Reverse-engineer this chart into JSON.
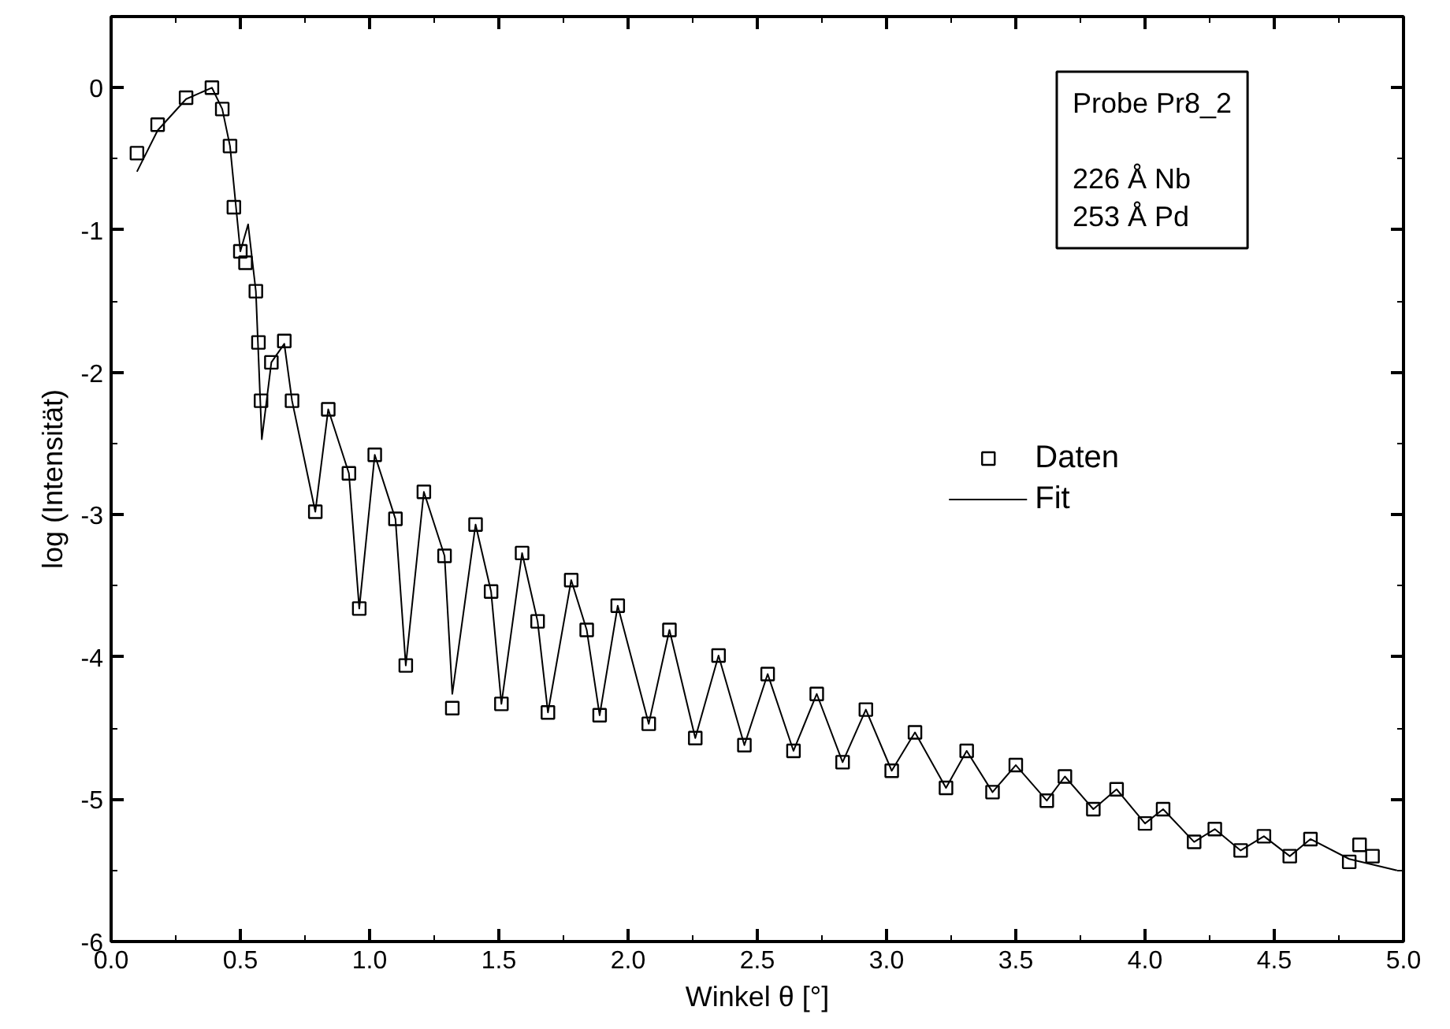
{
  "chart_data": {
    "type": "scatter",
    "xlabel": "Winkel θ [°]",
    "ylabel": "log (Intensität)",
    "annotations": [
      "Probe Pr8_2\n\n226 Å Nb\n253 Å Pd"
    ],
    "xlim": [
      0,
      5
    ],
    "ylim": [
      -6,
      0.5
    ],
    "xticks": [
      {
        "value": 0,
        "label": "0.0"
      },
      {
        "value": 0.5,
        "label": "0.5"
      },
      {
        "value": 1,
        "label": "1.0"
      },
      {
        "value": 1.5,
        "label": "1.5"
      },
      {
        "value": 2,
        "label": "2.0"
      },
      {
        "value": 2.5,
        "label": "2.5"
      },
      {
        "value": 3,
        "label": "3.0"
      },
      {
        "value": 3.5,
        "label": "3.5"
      },
      {
        "value": 4,
        "label": "4.0"
      },
      {
        "value": 4.5,
        "label": "4.5"
      },
      {
        "value": 5,
        "label": "5.0"
      }
    ],
    "yticks": [
      -6,
      -5,
      -4,
      -3,
      -2,
      -1,
      0
    ],
    "grid": false,
    "legend": "right",
    "series": [
      {
        "name": "Daten",
        "marker": "square",
        "color": "#000000",
        "x": [
          0.1,
          0.18,
          0.29,
          0.39,
          0.43,
          0.46,
          0.475,
          0.5,
          0.52,
          0.56,
          0.57,
          0.58,
          0.62,
          0.67,
          0.7,
          0.79,
          0.84,
          0.92,
          0.96,
          1.02,
          1.1,
          1.14,
          1.21,
          1.29,
          1.32,
          1.41,
          1.47,
          1.51,
          1.59,
          1.65,
          1.69,
          1.78,
          1.84,
          1.89,
          1.96,
          2.08,
          2.16,
          2.26,
          2.35,
          2.45,
          2.54,
          2.64,
          2.73,
          2.83,
          2.92,
          3.02,
          3.11,
          3.23,
          3.31,
          3.41,
          3.5,
          3.62,
          3.69,
          3.8,
          3.89,
          4.0,
          4.07,
          4.19,
          4.27,
          4.37,
          4.46,
          4.56,
          4.64,
          4.79,
          4.83,
          4.88
        ],
        "values": [
          -0.46,
          -0.26,
          -0.07,
          0.0,
          -0.15,
          -0.41,
          -0.84,
          -1.15,
          -1.23,
          -1.43,
          -1.79,
          -2.2,
          -1.93,
          -1.78,
          -2.2,
          -2.98,
          -2.26,
          -2.71,
          -3.66,
          -2.58,
          -3.03,
          -4.06,
          -2.84,
          -3.29,
          -4.36,
          -3.07,
          -3.54,
          -4.33,
          -3.27,
          -3.75,
          -4.39,
          -3.46,
          -3.81,
          -4.41,
          -3.64,
          -4.47,
          -3.81,
          -4.57,
          -3.99,
          -4.62,
          -4.12,
          -4.66,
          -4.26,
          -4.74,
          -4.37,
          -4.8,
          -4.53,
          -4.92,
          -4.66,
          -4.95,
          -4.76,
          -5.01,
          -4.84,
          -5.07,
          -4.93,
          -5.17,
          -5.07,
          -5.3,
          -5.21,
          -5.36,
          -5.26,
          -5.4,
          -5.28,
          -5.44,
          -5.32,
          -5.4
        ]
      },
      {
        "name": "Fit",
        "type": "line",
        "line_style": "solid",
        "color": "#000000",
        "x": [
          0.1,
          0.18,
          0.29,
          0.39,
          0.43,
          0.46,
          0.5,
          0.53,
          0.56,
          0.583,
          0.62,
          0.67,
          0.7,
          0.79,
          0.84,
          0.92,
          0.96,
          1.02,
          1.1,
          1.14,
          1.21,
          1.29,
          1.32,
          1.41,
          1.47,
          1.51,
          1.59,
          1.65,
          1.69,
          1.78,
          1.84,
          1.89,
          1.96,
          2.08,
          2.16,
          2.26,
          2.35,
          2.45,
          2.54,
          2.64,
          2.73,
          2.83,
          2.92,
          3.02,
          3.11,
          3.23,
          3.31,
          3.41,
          3.5,
          3.62,
          3.69,
          3.8,
          3.89,
          4.0,
          4.07,
          4.19,
          4.27,
          4.37,
          4.46,
          4.56,
          4.64,
          4.79,
          4.975
        ],
        "values": [
          -0.59,
          -0.3,
          -0.08,
          0.0,
          -0.15,
          -0.41,
          -1.15,
          -0.96,
          -1.43,
          -2.47,
          -1.93,
          -1.8,
          -2.2,
          -2.98,
          -2.26,
          -2.71,
          -3.66,
          -2.58,
          -3.03,
          -4.06,
          -2.84,
          -3.29,
          -4.26,
          -3.07,
          -3.54,
          -4.33,
          -3.27,
          -3.75,
          -4.39,
          -3.46,
          -3.81,
          -4.41,
          -3.64,
          -4.47,
          -3.81,
          -4.57,
          -3.99,
          -4.62,
          -4.12,
          -4.66,
          -4.26,
          -4.74,
          -4.37,
          -4.8,
          -4.53,
          -4.92,
          -4.66,
          -4.95,
          -4.76,
          -5.01,
          -4.84,
          -5.07,
          -4.93,
          -5.17,
          -5.07,
          -5.3,
          -5.21,
          -5.36,
          -5.26,
          -5.4,
          -5.28,
          -5.42,
          -5.5
        ]
      }
    ]
  }
}
